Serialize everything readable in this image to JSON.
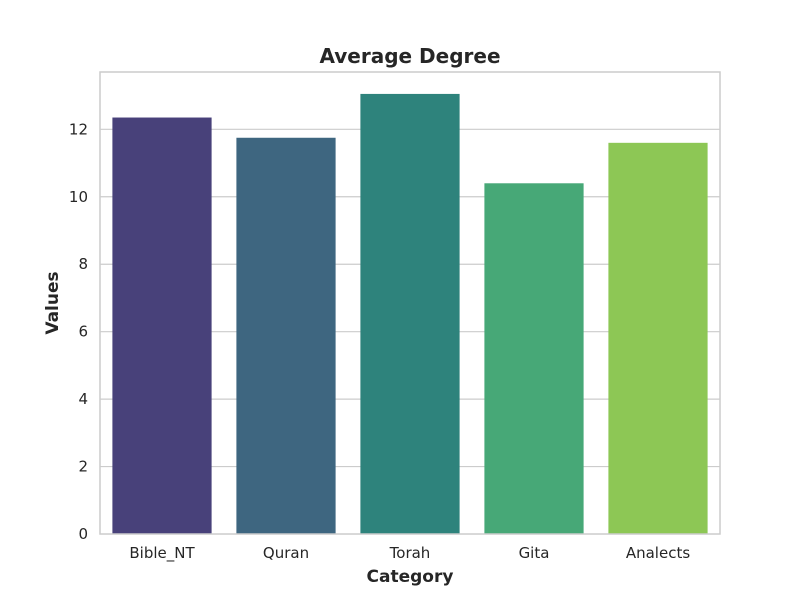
{
  "chart_data": {
    "type": "bar",
    "title": "Average Degree",
    "xlabel": "Category",
    "ylabel": "Values",
    "categories": [
      "Bible_NT",
      "Quran",
      "Torah",
      "Gita",
      "Analects"
    ],
    "values": [
      12.35,
      11.75,
      13.05,
      10.4,
      11.6
    ],
    "colors": [
      "#48417a",
      "#3e6680",
      "#2e837c",
      "#47a877",
      "#8dc755"
    ],
    "yticks": [
      0,
      2,
      4,
      6,
      8,
      10,
      12
    ],
    "ylim": [
      0,
      13.7
    ],
    "grid": "horizontal"
  }
}
